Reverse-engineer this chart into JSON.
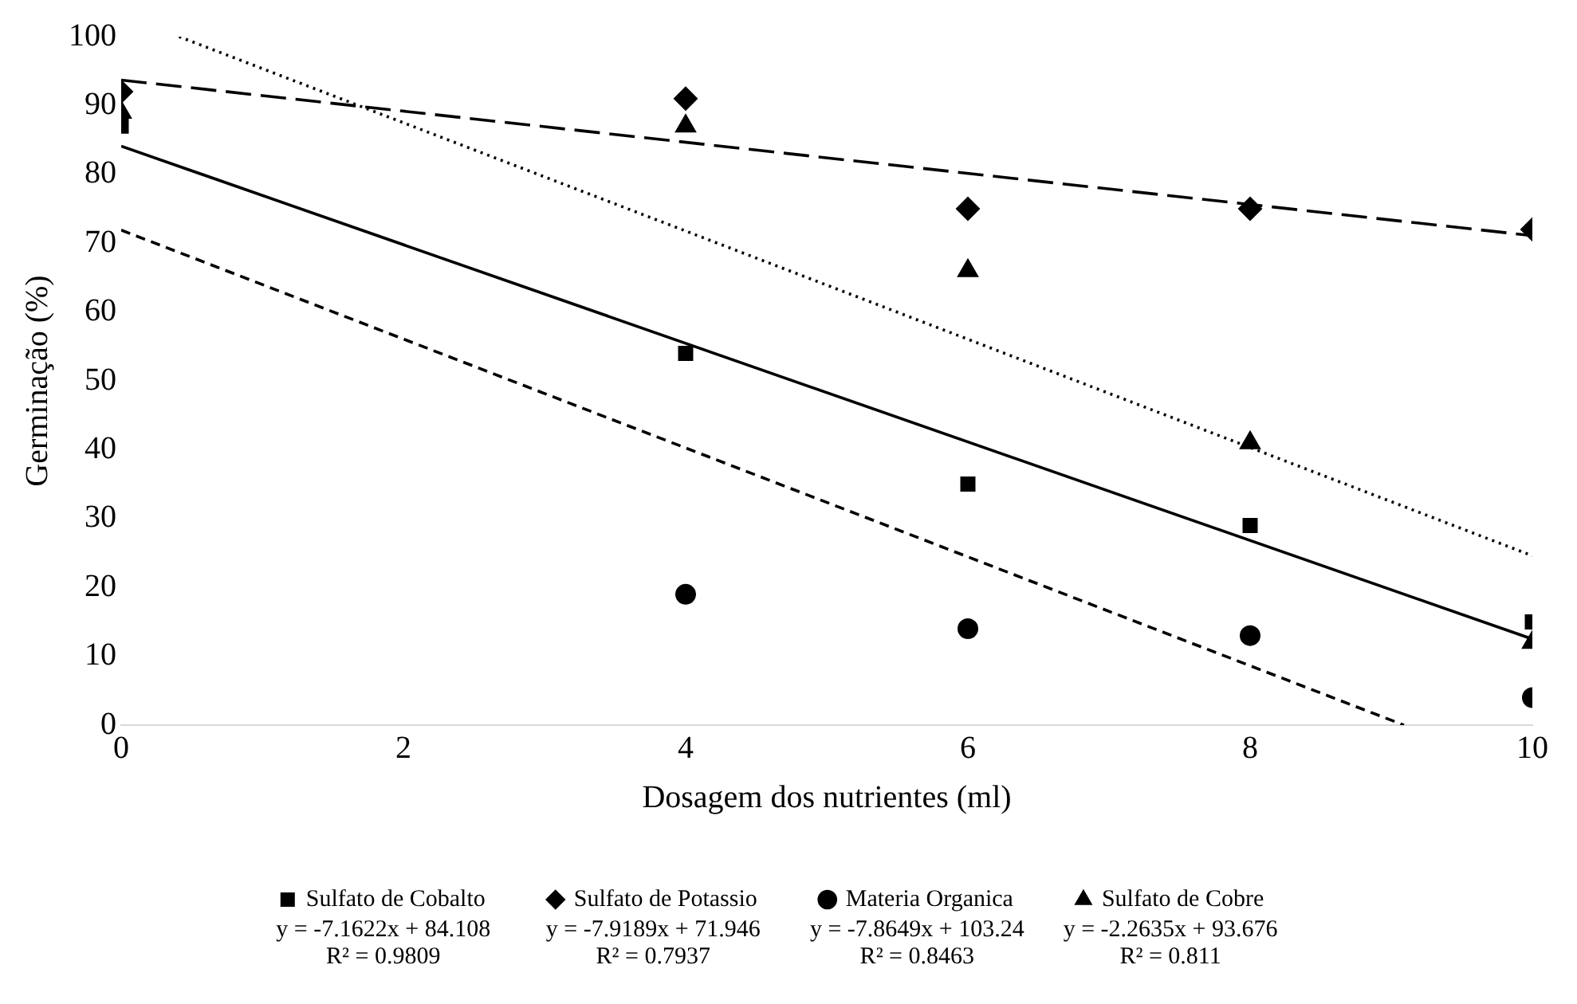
{
  "chart_data": {
    "type": "scatter",
    "xlabel": "Dosagem dos nutrientes (ml)",
    "ylabel": "Germinação (%)",
    "x": [
      0,
      4,
      6,
      8,
      10
    ],
    "xlim": [
      0,
      10
    ],
    "xticks": [
      0,
      2,
      4,
      6,
      8,
      10
    ],
    "ylim": [
      0,
      100
    ],
    "yticks": [
      0,
      10,
      20,
      30,
      40,
      50,
      60,
      70,
      80,
      90,
      100
    ],
    "legend": "bottom",
    "series": [
      {
        "name": "Sulfato de Cobalto",
        "color": "#000000",
        "marker": "square",
        "values": [
          87,
          54,
          35,
          29,
          15
        ]
      },
      {
        "name": "Sulfato de Potassio",
        "color": "#000000",
        "marker": "diamond",
        "values": [
          92,
          91,
          75,
          75,
          72
        ]
      },
      {
        "name": "Materia Organica",
        "color": "#000000",
        "marker": "circle",
        "values": [
          null,
          19,
          14,
          13,
          4
        ]
      },
      {
        "name": "Sulfato de Cobre",
        "color": "#000000",
        "marker": "triangle",
        "values": [
          89,
          87,
          66,
          41,
          12
        ]
      },
      {
        "type": "line",
        "color": "#000000",
        "line_style": "solid",
        "x": [
          0,
          10
        ],
        "values": [
          84.1,
          12.5
        ]
      },
      {
        "type": "line",
        "color": "#000000",
        "line_style": "dashed",
        "x": [
          0,
          9.09
        ],
        "values": [
          71.9,
          0
        ]
      },
      {
        "type": "line",
        "color": "#000000",
        "line_style": "dotted",
        "x": [
          0.41,
          10
        ],
        "values": [
          100,
          24.6
        ]
      },
      {
        "type": "line",
        "color": "#000000",
        "line_style": "longdash",
        "x": [
          0,
          10
        ],
        "values": [
          93.7,
          71.1
        ]
      }
    ],
    "annotations": [
      "y = -7.1622x + 84.108\nR² = 0.9809",
      "y = -7.9189x + 71.946\nR² = 0.7937",
      "y = -7.8649x + 103.24\nR² = 0.8463",
      "y = -2.2635x + 93.676\nR² = 0.811"
    ]
  }
}
